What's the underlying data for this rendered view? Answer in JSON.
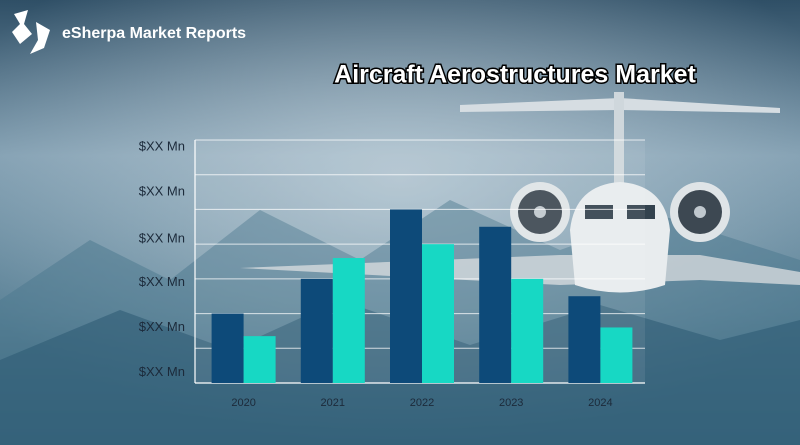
{
  "brand": "eSherpa Market Reports",
  "chart_data": {
    "type": "bar",
    "title": "Aircraft Aerostructures Market",
    "categories": [
      "2020",
      "2021",
      "2022",
      "2023",
      "2024"
    ],
    "series": [
      {
        "color": "#0d4a79",
        "values": [
          2.0,
          3.0,
          5.0,
          4.5,
          2.5
        ]
      },
      {
        "color": "#17d8c4",
        "values": [
          1.35,
          3.6,
          4.0,
          3.0,
          1.6
        ]
      }
    ],
    "ylim": [
      0,
      7
    ],
    "yticks": [
      {
        "value": 0.3,
        "label": "$XX Mn"
      },
      {
        "value": 1.6,
        "label": "$XX Mn"
      },
      {
        "value": 2.9,
        "label": "$XX Mn"
      },
      {
        "value": 4.15,
        "label": "$XX Mn"
      },
      {
        "value": 5.5,
        "label": "$XX Mn"
      },
      {
        "value": 6.8,
        "label": "$XX Mn"
      }
    ],
    "grid": true,
    "grid_values": [
      1,
      2,
      3,
      4,
      5,
      6,
      7
    ]
  }
}
